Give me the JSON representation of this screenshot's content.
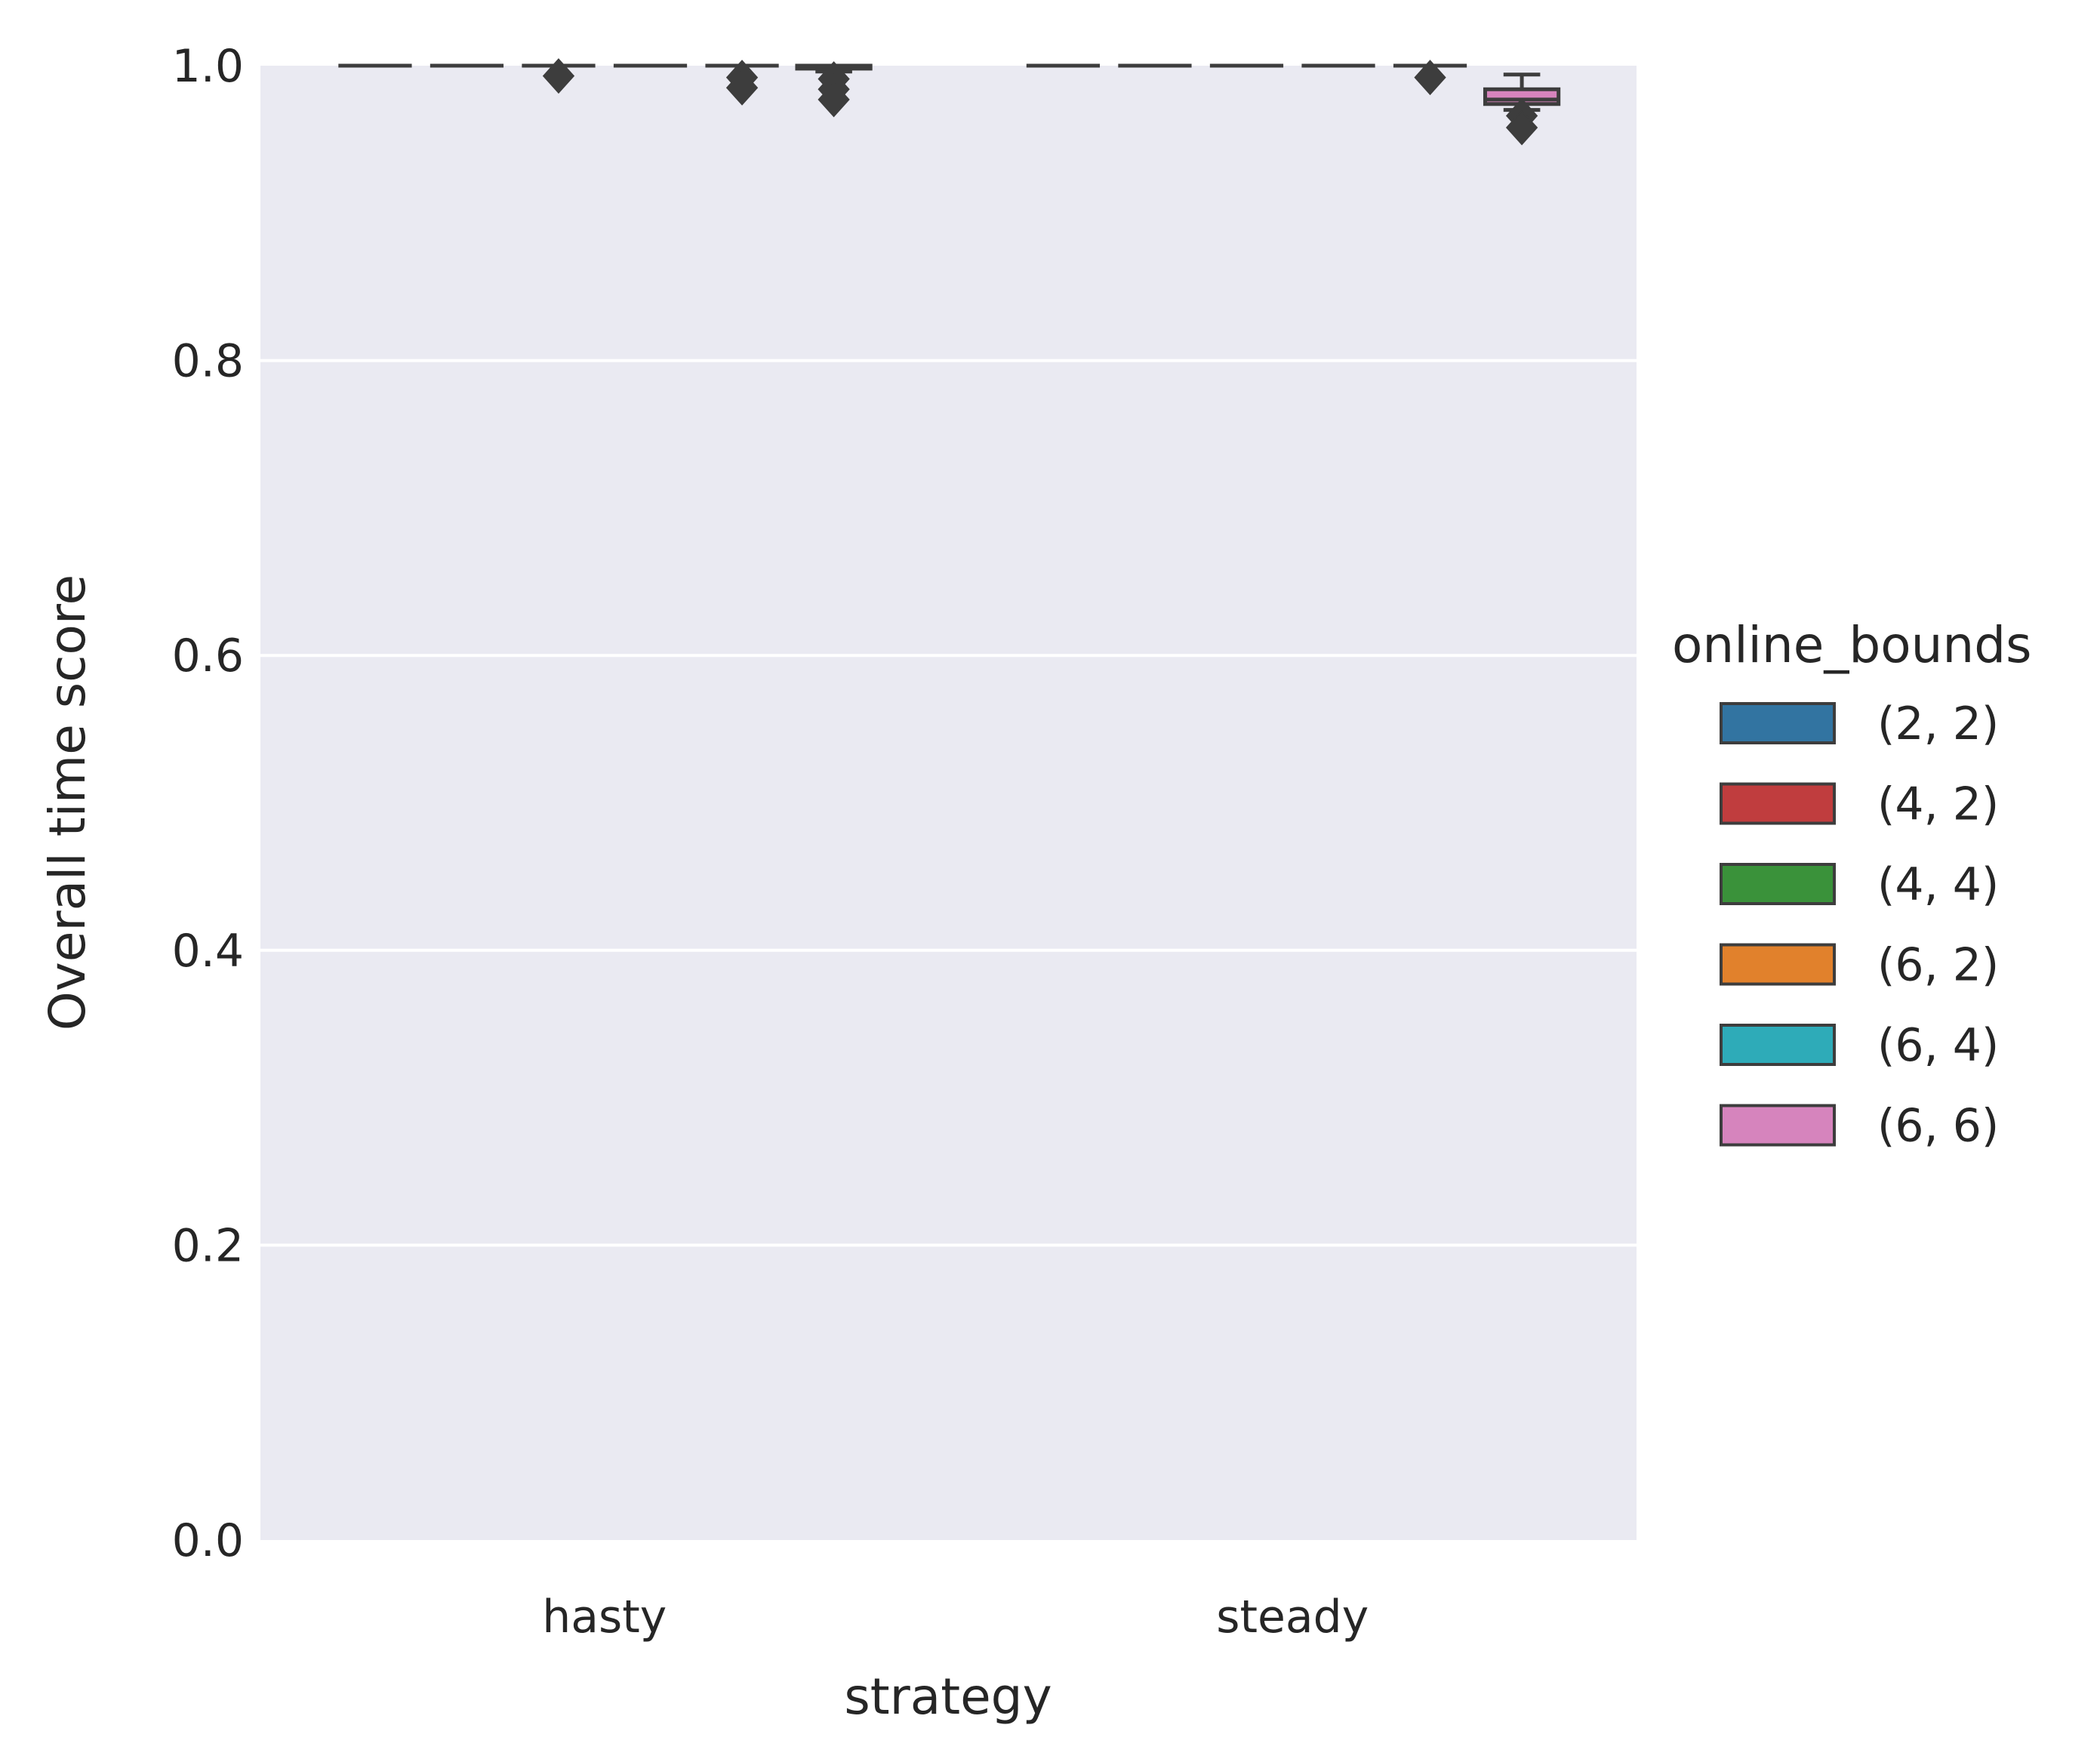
{
  "chart_data": {
    "type": "box",
    "xlabel": "strategy",
    "ylabel": "Overall time score",
    "ylim": [
      0.0,
      1.0
    ],
    "yticks": [
      "0.0",
      "0.2",
      "0.4",
      "0.6",
      "0.8",
      "1.0"
    ],
    "categories": [
      "hasty",
      "steady"
    ],
    "grid": true,
    "legend": {
      "title": "online_bounds",
      "placement": "right",
      "entries": [
        {
          "label": "(2, 2)",
          "color": "#3274a1"
        },
        {
          "label": "(4, 2)",
          "color": "#c03d3e"
        },
        {
          "label": "(4, 4)",
          "color": "#3a923a"
        },
        {
          "label": "(6, 2)",
          "color": "#e1812c"
        },
        {
          "label": "(6, 4)",
          "color": "#2eabb8"
        },
        {
          "label": "(6, 6)",
          "color": "#d684bd"
        }
      ]
    },
    "series": [
      {
        "name": "(2, 2)",
        "boxes": [
          {
            "q1": 1.0,
            "median": 1.0,
            "q3": 1.0,
            "whislo": 1.0,
            "whishi": 1.0,
            "fliers": []
          },
          {
            "q1": 1.0,
            "median": 1.0,
            "q3": 1.0,
            "whislo": 1.0,
            "whishi": 1.0,
            "fliers": []
          }
        ]
      },
      {
        "name": "(4, 2)",
        "boxes": [
          {
            "q1": 1.0,
            "median": 1.0,
            "q3": 1.0,
            "whislo": 1.0,
            "whishi": 1.0,
            "fliers": []
          },
          {
            "q1": 1.0,
            "median": 1.0,
            "q3": 1.0,
            "whislo": 1.0,
            "whishi": 1.0,
            "fliers": []
          }
        ]
      },
      {
        "name": "(4, 4)",
        "boxes": [
          {
            "q1": 1.0,
            "median": 1.0,
            "q3": 1.0,
            "whislo": 1.0,
            "whishi": 1.0,
            "fliers": [
              0.993
            ]
          },
          {
            "q1": 1.0,
            "median": 1.0,
            "q3": 1.0,
            "whislo": 1.0,
            "whishi": 1.0,
            "fliers": []
          }
        ]
      },
      {
        "name": "(6, 2)",
        "boxes": [
          {
            "q1": 1.0,
            "median": 1.0,
            "q3": 1.0,
            "whislo": 1.0,
            "whishi": 1.0,
            "fliers": []
          },
          {
            "q1": 1.0,
            "median": 1.0,
            "q3": 1.0,
            "whislo": 1.0,
            "whishi": 1.0,
            "fliers": []
          }
        ]
      },
      {
        "name": "(6, 4)",
        "boxes": [
          {
            "q1": 1.0,
            "median": 1.0,
            "q3": 1.0,
            "whislo": 1.0,
            "whishi": 1.0,
            "fliers": [
              0.992,
              0.985
            ]
          },
          {
            "q1": 1.0,
            "median": 1.0,
            "q3": 1.0,
            "whislo": 1.0,
            "whishi": 1.0,
            "fliers": [
              0.992
            ]
          }
        ]
      },
      {
        "name": "(6, 6)",
        "boxes": [
          {
            "q1": 0.998,
            "median": 0.999,
            "q3": 1.0,
            "whislo": 0.996,
            "whishi": 1.0,
            "fliers": [
              0.991,
              0.984,
              0.977
            ]
          },
          {
            "q1": 0.974,
            "median": 0.977,
            "q3": 0.984,
            "whislo": 0.97,
            "whishi": 0.994,
            "fliers": [
              0.966,
              0.958
            ]
          }
        ]
      }
    ]
  }
}
